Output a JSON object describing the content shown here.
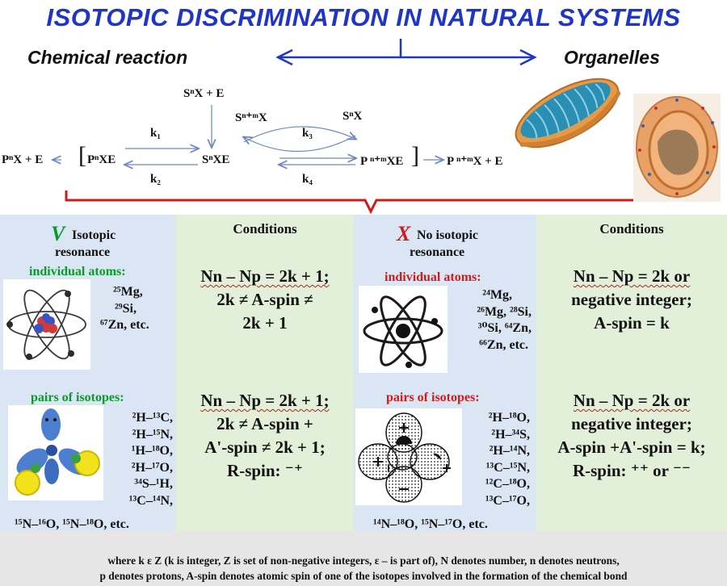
{
  "title": "ISOTOPIC DISCRIMINATION IN NATURAL SYSTEMS",
  "subheads": {
    "left": "Chemical reaction",
    "right": "Organelles"
  },
  "colors": {
    "title": "#1f35c8",
    "accent_red": "#d11a1a",
    "accent_green": "#0a9a2a",
    "blue_panel": "#dbe6f4",
    "green_panel": "#e3f0d9"
  },
  "reaction": {
    "top_reactant": "SⁿX + E",
    "snm_left": "Sⁿ⁺ᵐX",
    "sn_right": "SⁿX",
    "k1": "k₁",
    "k2": "k₂",
    "k3": "k₃",
    "k4": "k₄",
    "left_product": "PⁿX + E",
    "complex_left": "PⁿXE",
    "center": "SⁿXE",
    "complex_right": "P ⁿ⁺ᵐXE",
    "right_product": "P ⁿ⁺ᵐX + E"
  },
  "panels": {
    "col1": {
      "mark": "V",
      "heading_line1": "Isotopic",
      "heading_line2": "resonance",
      "individual_label": "individual atoms:",
      "individual_atoms": [
        "²⁵Mg,",
        "²⁹Si,",
        "⁶⁷Zn, etc."
      ],
      "pairs_label": "pairs of isotopes:",
      "pairs": [
        "²H–¹³C,",
        "²H–¹⁵N,",
        "¹H–¹⁸O,",
        "²H–¹⁷O,",
        "³⁴S–¹H,",
        "¹³C–¹⁴N,"
      ],
      "pairs_last": "¹⁵N–¹⁶O, ¹⁵N–¹⁸O, etc."
    },
    "col2": {
      "heading": "Conditions",
      "top_formula": [
        "Nn – Np = 2k + 1;",
        "2k ≠ A-spin ≠",
        "2k + 1"
      ],
      "bottom_formula": [
        "Nn – Np = 2k + 1;",
        "2k ≠ A-spin +",
        "A'-spin ≠ 2k + 1;",
        "R-spin: ⁻⁺"
      ]
    },
    "col3": {
      "mark": "X",
      "heading_line1": "No isotopic",
      "heading_line2": "resonance",
      "individual_label": "individual atoms:",
      "individual_atoms": [
        "²⁴Mg,",
        "²⁶Mg, ²⁸Si,",
        "³⁰Si, ⁶⁴Zn,",
        "⁶⁶Zn, etc."
      ],
      "pairs_label": "pairs of isotopes:",
      "pairs": [
        "²H–¹⁸O,",
        "²H–³⁴S,",
        "²H–¹⁴N,",
        "¹³C–¹⁵N,",
        "¹²C–¹⁸O,",
        "¹³C–¹⁷O,"
      ],
      "pairs_last": "¹⁴N–¹⁸O, ¹⁵N–¹⁷O, etc."
    },
    "col4": {
      "heading": "Conditions",
      "top_formula": [
        "Nn – Np = 2k or",
        "negative integer;",
        "A-spin = k"
      ],
      "bottom_formula": [
        "Nn – Np = 2k or",
        "negative integer;",
        "A-spin +A'-spin = k;",
        "R-spin: ⁺⁺ or ⁻⁻"
      ]
    }
  },
  "footnote": {
    "line1": "where k ε Z (k is integer, Z is set of non-negative integers, ε – is part of), N denotes number, n denotes neutrons,",
    "line2": "p denotes protons, A-spin denotes atomic spin of one of the isotopes involved in the formation of the chemical bond"
  },
  "icons": [
    "atom-icon",
    "atom-dark-icon",
    "orbital-molecule-icon",
    "dotted-orbital-molecule-icon",
    "mitochondrion-icon",
    "cell-icon"
  ]
}
